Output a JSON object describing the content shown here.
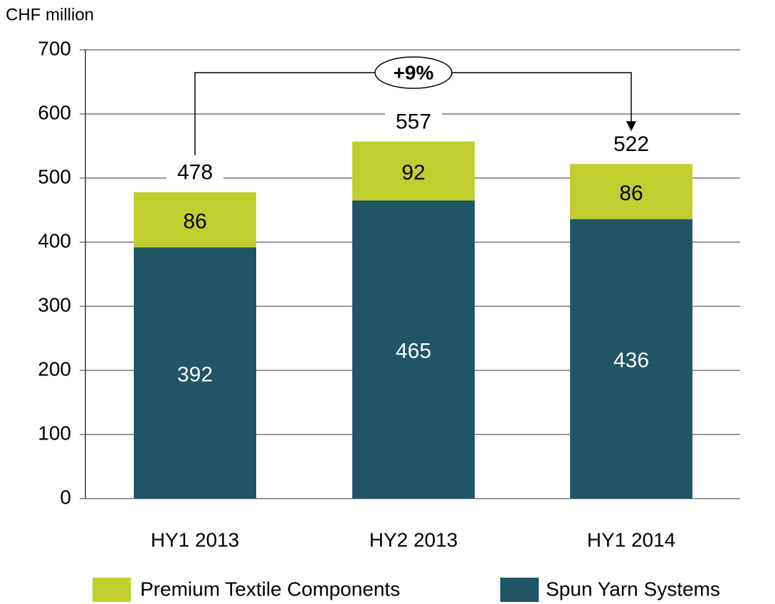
{
  "chart_data": {
    "type": "stacked_bar",
    "y_axis_label": "CHF million",
    "categories": [
      "HY1 2013",
      "HY2 2013",
      "HY1 2014"
    ],
    "series": [
      {
        "name": "Spun Yarn Systems",
        "color": "#1f5564",
        "values": [
          392,
          465,
          436
        ]
      },
      {
        "name": "Premium Textile Components",
        "color": "#c0cf2e",
        "values": [
          86,
          92,
          86
        ]
      }
    ],
    "totals": [
      478,
      557,
      522
    ],
    "annotation": "+9%",
    "ylim": [
      0,
      700
    ],
    "yticks": [
      0,
      100,
      200,
      300,
      400,
      500,
      600,
      700
    ],
    "grid": true
  }
}
